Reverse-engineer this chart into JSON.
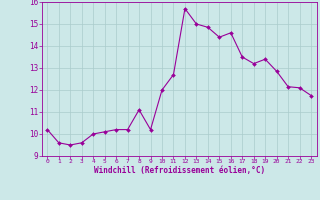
{
  "x": [
    0,
    1,
    2,
    3,
    4,
    5,
    6,
    7,
    8,
    9,
    10,
    11,
    12,
    13,
    14,
    15,
    16,
    17,
    18,
    19,
    20,
    21,
    22,
    23
  ],
  "y": [
    10.2,
    9.6,
    9.5,
    9.6,
    10.0,
    10.1,
    10.2,
    10.2,
    11.1,
    10.2,
    12.0,
    12.7,
    15.7,
    15.0,
    14.85,
    14.4,
    14.6,
    13.5,
    13.2,
    13.4,
    12.85,
    12.15,
    12.1,
    11.75
  ],
  "line_color": "#990099",
  "marker": "D",
  "marker_size": 2.0,
  "bg_color": "#cce8e8",
  "grid_color": "#aacccc",
  "xlabel": "Windchill (Refroidissement éolien,°C)",
  "xlabel_color": "#990099",
  "tick_color": "#990099",
  "ylim": [
    9,
    16
  ],
  "xlim_min": -0.5,
  "xlim_max": 23.5,
  "yticks": [
    9,
    10,
    11,
    12,
    13,
    14,
    15,
    16
  ],
  "xticks": [
    0,
    1,
    2,
    3,
    4,
    5,
    6,
    7,
    8,
    9,
    10,
    11,
    12,
    13,
    14,
    15,
    16,
    17,
    18,
    19,
    20,
    21,
    22,
    23
  ]
}
